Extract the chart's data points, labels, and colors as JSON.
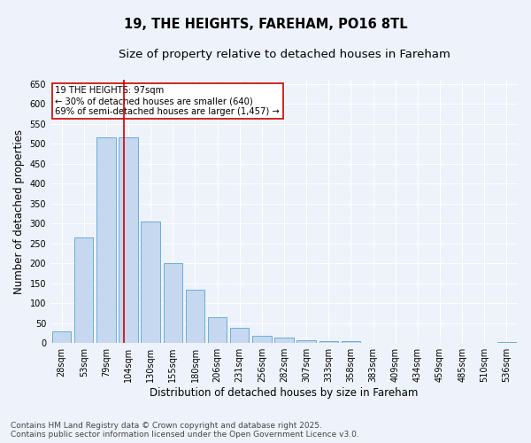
{
  "title1": "19, THE HEIGHTS, FAREHAM, PO16 8TL",
  "title2": "Size of property relative to detached houses in Fareham",
  "xlabel": "Distribution of detached houses by size in Fareham",
  "ylabel": "Number of detached properties",
  "categories": [
    "28sqm",
    "53sqm",
    "79sqm",
    "104sqm",
    "130sqm",
    "155sqm",
    "180sqm",
    "206sqm",
    "231sqm",
    "256sqm",
    "282sqm",
    "307sqm",
    "333sqm",
    "358sqm",
    "383sqm",
    "409sqm",
    "434sqm",
    "459sqm",
    "485sqm",
    "510sqm",
    "536sqm"
  ],
  "values": [
    30,
    265,
    515,
    515,
    305,
    200,
    133,
    65,
    38,
    18,
    13,
    8,
    6,
    4,
    1,
    0,
    0,
    1,
    0,
    0,
    2
  ],
  "bar_color": "#c5d8f0",
  "bar_edgecolor": "#6aaed6",
  "bar_width": 0.85,
  "ylim": [
    0,
    660
  ],
  "yticks": [
    0,
    50,
    100,
    150,
    200,
    250,
    300,
    350,
    400,
    450,
    500,
    550,
    600,
    650
  ],
  "vline_color": "#cc0000",
  "annotation_text": "19 THE HEIGHTS: 97sqm\n← 30% of detached houses are smaller (640)\n69% of semi-detached houses are larger (1,457) →",
  "annotation_box_color": "#ffffff",
  "annotation_box_edgecolor": "#cc0000",
  "footer1": "Contains HM Land Registry data © Crown copyright and database right 2025.",
  "footer2": "Contains public sector information licensed under the Open Government Licence v3.0.",
  "background_color": "#eef2fb",
  "grid_color": "#ffffff",
  "title_fontsize": 10.5,
  "subtitle_fontsize": 9.5,
  "tick_fontsize": 7,
  "ylabel_fontsize": 8.5,
  "xlabel_fontsize": 8.5,
  "footer_fontsize": 6.5
}
